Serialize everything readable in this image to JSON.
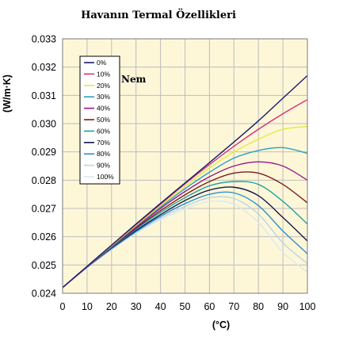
{
  "chart_data": {
    "type": "line",
    "title": "Havanın Termal Özellikleri",
    "xlabel": "(°C)",
    "ylabel": "(W/m·K)",
    "annotation": "Nem",
    "xlim": [
      0,
      100
    ],
    "ylim": [
      0.024,
      0.033
    ],
    "x_ticks": [
      "0",
      "10",
      "20",
      "30",
      "40",
      "50",
      "60",
      "70",
      "80",
      "90",
      "100"
    ],
    "y_ticks": [
      "0.024",
      "0.025",
      "0.026",
      "0.027",
      "0.028",
      "0.029",
      "0.030",
      "0.031",
      "0.032",
      "0.033"
    ],
    "grid": true,
    "legend_position": "top-left",
    "x": [
      0,
      10,
      20,
      30,
      40,
      50,
      60,
      70,
      80,
      90,
      100
    ],
    "series": [
      {
        "name": "0%",
        "color": "#1a1a6e",
        "values": [
          0.0242,
          0.02495,
          0.0257,
          0.02645,
          0.02718,
          0.0279,
          0.02862,
          0.02935,
          0.0301,
          0.0309,
          0.0317
        ]
      },
      {
        "name": "10%",
        "color": "#d6307c",
        "values": [
          0.0242,
          0.02495,
          0.0257,
          0.02643,
          0.02715,
          0.02787,
          0.02855,
          0.0292,
          0.0298,
          0.03035,
          0.03085
        ]
      },
      {
        "name": "20%",
        "color": "#e8e83a",
        "values": [
          0.0242,
          0.02495,
          0.02568,
          0.0264,
          0.0271,
          0.02778,
          0.02843,
          0.029,
          0.02945,
          0.0298,
          0.0299
        ]
      },
      {
        "name": "30%",
        "color": "#2aa0c0",
        "values": [
          0.0242,
          0.02495,
          0.02567,
          0.02638,
          0.02705,
          0.0277,
          0.02828,
          0.02878,
          0.02905,
          0.02915,
          0.02895
        ]
      },
      {
        "name": "40%",
        "color": "#9a1a8c",
        "values": [
          0.0242,
          0.02494,
          0.02565,
          0.02634,
          0.027,
          0.0276,
          0.02812,
          0.0285,
          0.02865,
          0.0285,
          0.028
        ]
      },
      {
        "name": "50%",
        "color": "#7a1e1e",
        "values": [
          0.0242,
          0.02494,
          0.02564,
          0.0263,
          0.02692,
          0.02748,
          0.02795,
          0.02825,
          0.02825,
          0.02785,
          0.0272
        ]
      },
      {
        "name": "60%",
        "color": "#1fa4a0",
        "values": [
          0.0242,
          0.02493,
          0.02562,
          0.02627,
          0.02686,
          0.02738,
          0.0278,
          0.02795,
          0.02785,
          0.02725,
          0.02645
        ]
      },
      {
        "name": "70%",
        "color": "#161650",
        "values": [
          0.0242,
          0.02493,
          0.0256,
          0.02622,
          0.02678,
          0.02728,
          0.02765,
          0.02775,
          0.02745,
          0.02668,
          0.02585
        ]
      },
      {
        "name": "80%",
        "color": "#2d8fd0",
        "values": [
          0.0242,
          0.02492,
          0.02558,
          0.02618,
          0.02672,
          0.02717,
          0.0275,
          0.02755,
          0.0271,
          0.0262,
          0.0254
        ]
      },
      {
        "name": "90%",
        "color": "#b9d4ea",
        "values": [
          0.0242,
          0.02491,
          0.02556,
          0.02615,
          0.02666,
          0.02707,
          0.02738,
          0.02735,
          0.0268,
          0.02578,
          0.02505
        ]
      },
      {
        "name": "100%",
        "color": "#dce8f0",
        "values": [
          0.0242,
          0.0249,
          0.02554,
          0.02612,
          0.0266,
          0.02698,
          0.02725,
          0.02715,
          0.0265,
          0.02545,
          0.02475
        ]
      }
    ]
  }
}
